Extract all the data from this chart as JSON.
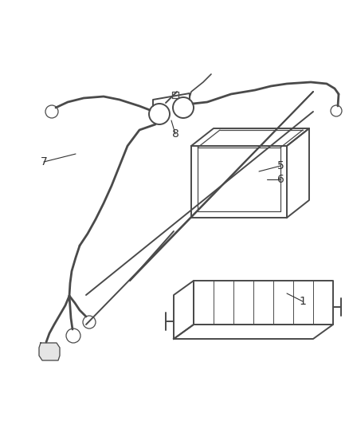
{
  "bg_color": "#ffffff",
  "line_color": "#4a4a4a",
  "label_color": "#333333",
  "fig_width": 4.38,
  "fig_height": 5.33,
  "dpi": 100
}
